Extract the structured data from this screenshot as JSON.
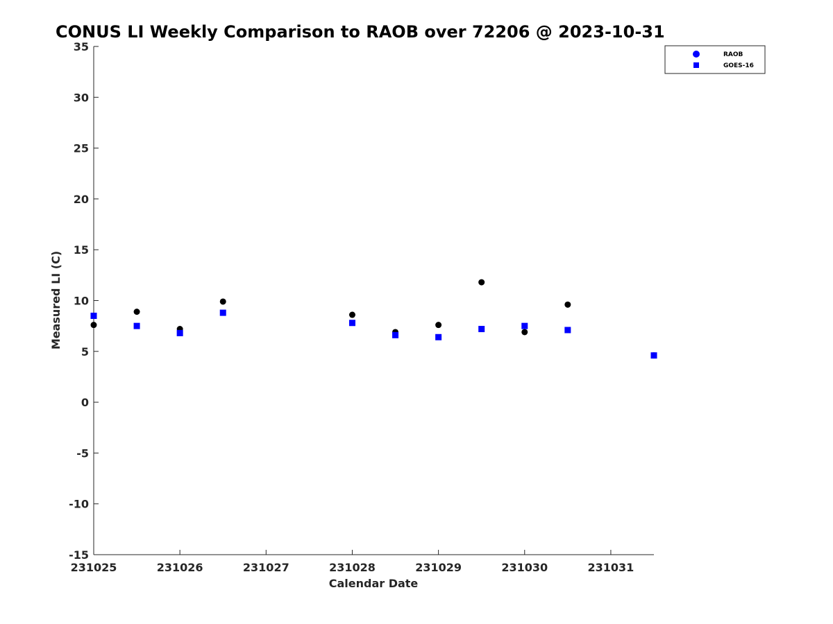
{
  "chart_data": {
    "type": "scatter",
    "title": "CONUS LI Weekly Comparison to RAOB over 72206 @ 2023-10-31",
    "xlabel": "Calendar Date",
    "ylabel": "Measured LI (C)",
    "xlim": [
      0,
      6.5
    ],
    "ylim": [
      -15,
      35
    ],
    "x_ticks": [
      {
        "value": 0,
        "label": "231025"
      },
      {
        "value": 1,
        "label": "231026"
      },
      {
        "value": 2,
        "label": "231027"
      },
      {
        "value": 3,
        "label": "231028"
      },
      {
        "value": 4,
        "label": "231029"
      },
      {
        "value": 5,
        "label": "231030"
      },
      {
        "value": 6,
        "label": "231031"
      }
    ],
    "y_ticks": [
      35,
      30,
      25,
      20,
      15,
      10,
      5,
      0,
      -5,
      -10,
      -15
    ],
    "grid": false,
    "legend_position": "top-right",
    "series": [
      {
        "name": "RAOB",
        "marker": "circle",
        "legend_color": "#0000ff",
        "color": "#000000",
        "points": [
          {
            "x": 0.0,
            "y": 7.6
          },
          {
            "x": 0.5,
            "y": 8.9
          },
          {
            "x": 1.0,
            "y": 7.2
          },
          {
            "x": 1.5,
            "y": 9.9
          },
          {
            "x": 3.0,
            "y": 8.6
          },
          {
            "x": 3.5,
            "y": 6.9
          },
          {
            "x": 4.0,
            "y": 7.6
          },
          {
            "x": 4.5,
            "y": 11.8
          },
          {
            "x": 5.0,
            "y": 6.9
          },
          {
            "x": 5.5,
            "y": 9.6
          },
          {
            "x": 6.5,
            "y": 4.6
          }
        ]
      },
      {
        "name": "GOES-16",
        "marker": "square",
        "legend_color": "#0000ff",
        "color": "#0000ff",
        "points": [
          {
            "x": 0.0,
            "y": 8.5
          },
          {
            "x": 0.5,
            "y": 7.5
          },
          {
            "x": 1.0,
            "y": 6.8
          },
          {
            "x": 1.5,
            "y": 8.8
          },
          {
            "x": 3.0,
            "y": 7.8
          },
          {
            "x": 3.5,
            "y": 6.6
          },
          {
            "x": 4.0,
            "y": 6.4
          },
          {
            "x": 4.5,
            "y": 7.2
          },
          {
            "x": 5.0,
            "y": 7.5
          },
          {
            "x": 5.5,
            "y": 7.1
          },
          {
            "x": 6.5,
            "y": 4.6
          }
        ]
      }
    ]
  }
}
